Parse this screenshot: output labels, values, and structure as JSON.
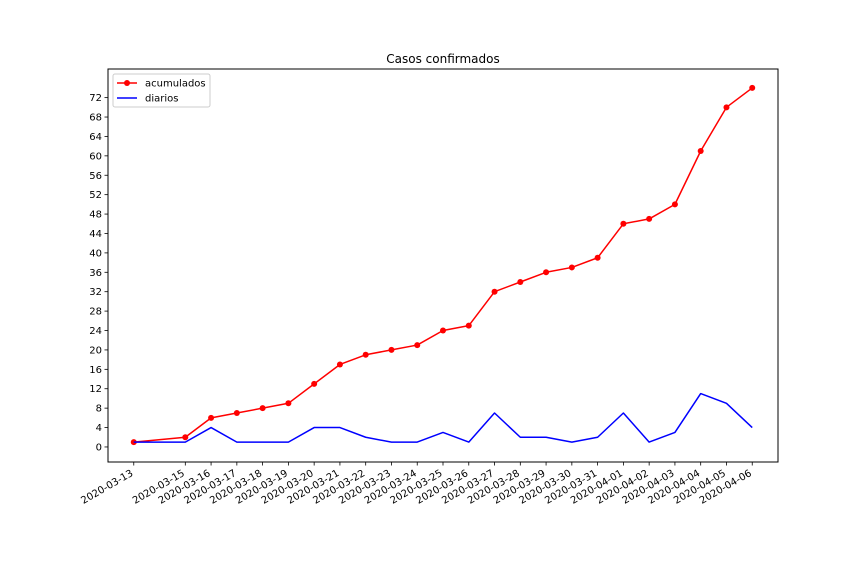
{
  "chart_data": {
    "type": "line",
    "title": "Casos confirmados",
    "xlabel": "",
    "ylabel": "",
    "x": [
      "2020-03-13",
      "2020-03-15",
      "2020-03-16",
      "2020-03-17",
      "2020-03-18",
      "2020-03-19",
      "2020-03-20",
      "2020-03-21",
      "2020-03-22",
      "2020-03-23",
      "2020-03-24",
      "2020-03-25",
      "2020-03-26",
      "2020-03-27",
      "2020-03-28",
      "2020-03-29",
      "2020-03-30",
      "2020-03-31",
      "2020-04-01",
      "2020-04-02",
      "2020-04-03",
      "2020-04-04",
      "2020-04-05",
      "2020-04-06"
    ],
    "series": [
      {
        "name": "acumulados",
        "color": "#ff0000",
        "marker": "circle",
        "values": [
          1,
          2,
          6,
          7,
          8,
          9,
          13,
          17,
          19,
          20,
          21,
          24,
          25,
          32,
          34,
          36,
          37,
          39,
          46,
          47,
          50,
          61,
          70,
          74
        ]
      },
      {
        "name": "diarios",
        "color": "#0000ff",
        "marker": "none",
        "values": [
          1,
          1,
          4,
          1,
          1,
          1,
          4,
          4,
          2,
          1,
          1,
          3,
          1,
          7,
          2,
          2,
          1,
          2,
          7,
          1,
          3,
          11,
          9,
          4
        ]
      }
    ],
    "yticks": [
      0,
      4,
      8,
      12,
      16,
      20,
      24,
      28,
      32,
      36,
      40,
      44,
      48,
      52,
      56,
      60,
      64,
      68,
      72
    ],
    "ylim": [
      -3.1,
      77.9
    ],
    "xlim": [
      "2020-03-12",
      "2020-04-07"
    ],
    "grid": false,
    "legend": "top-left"
  }
}
